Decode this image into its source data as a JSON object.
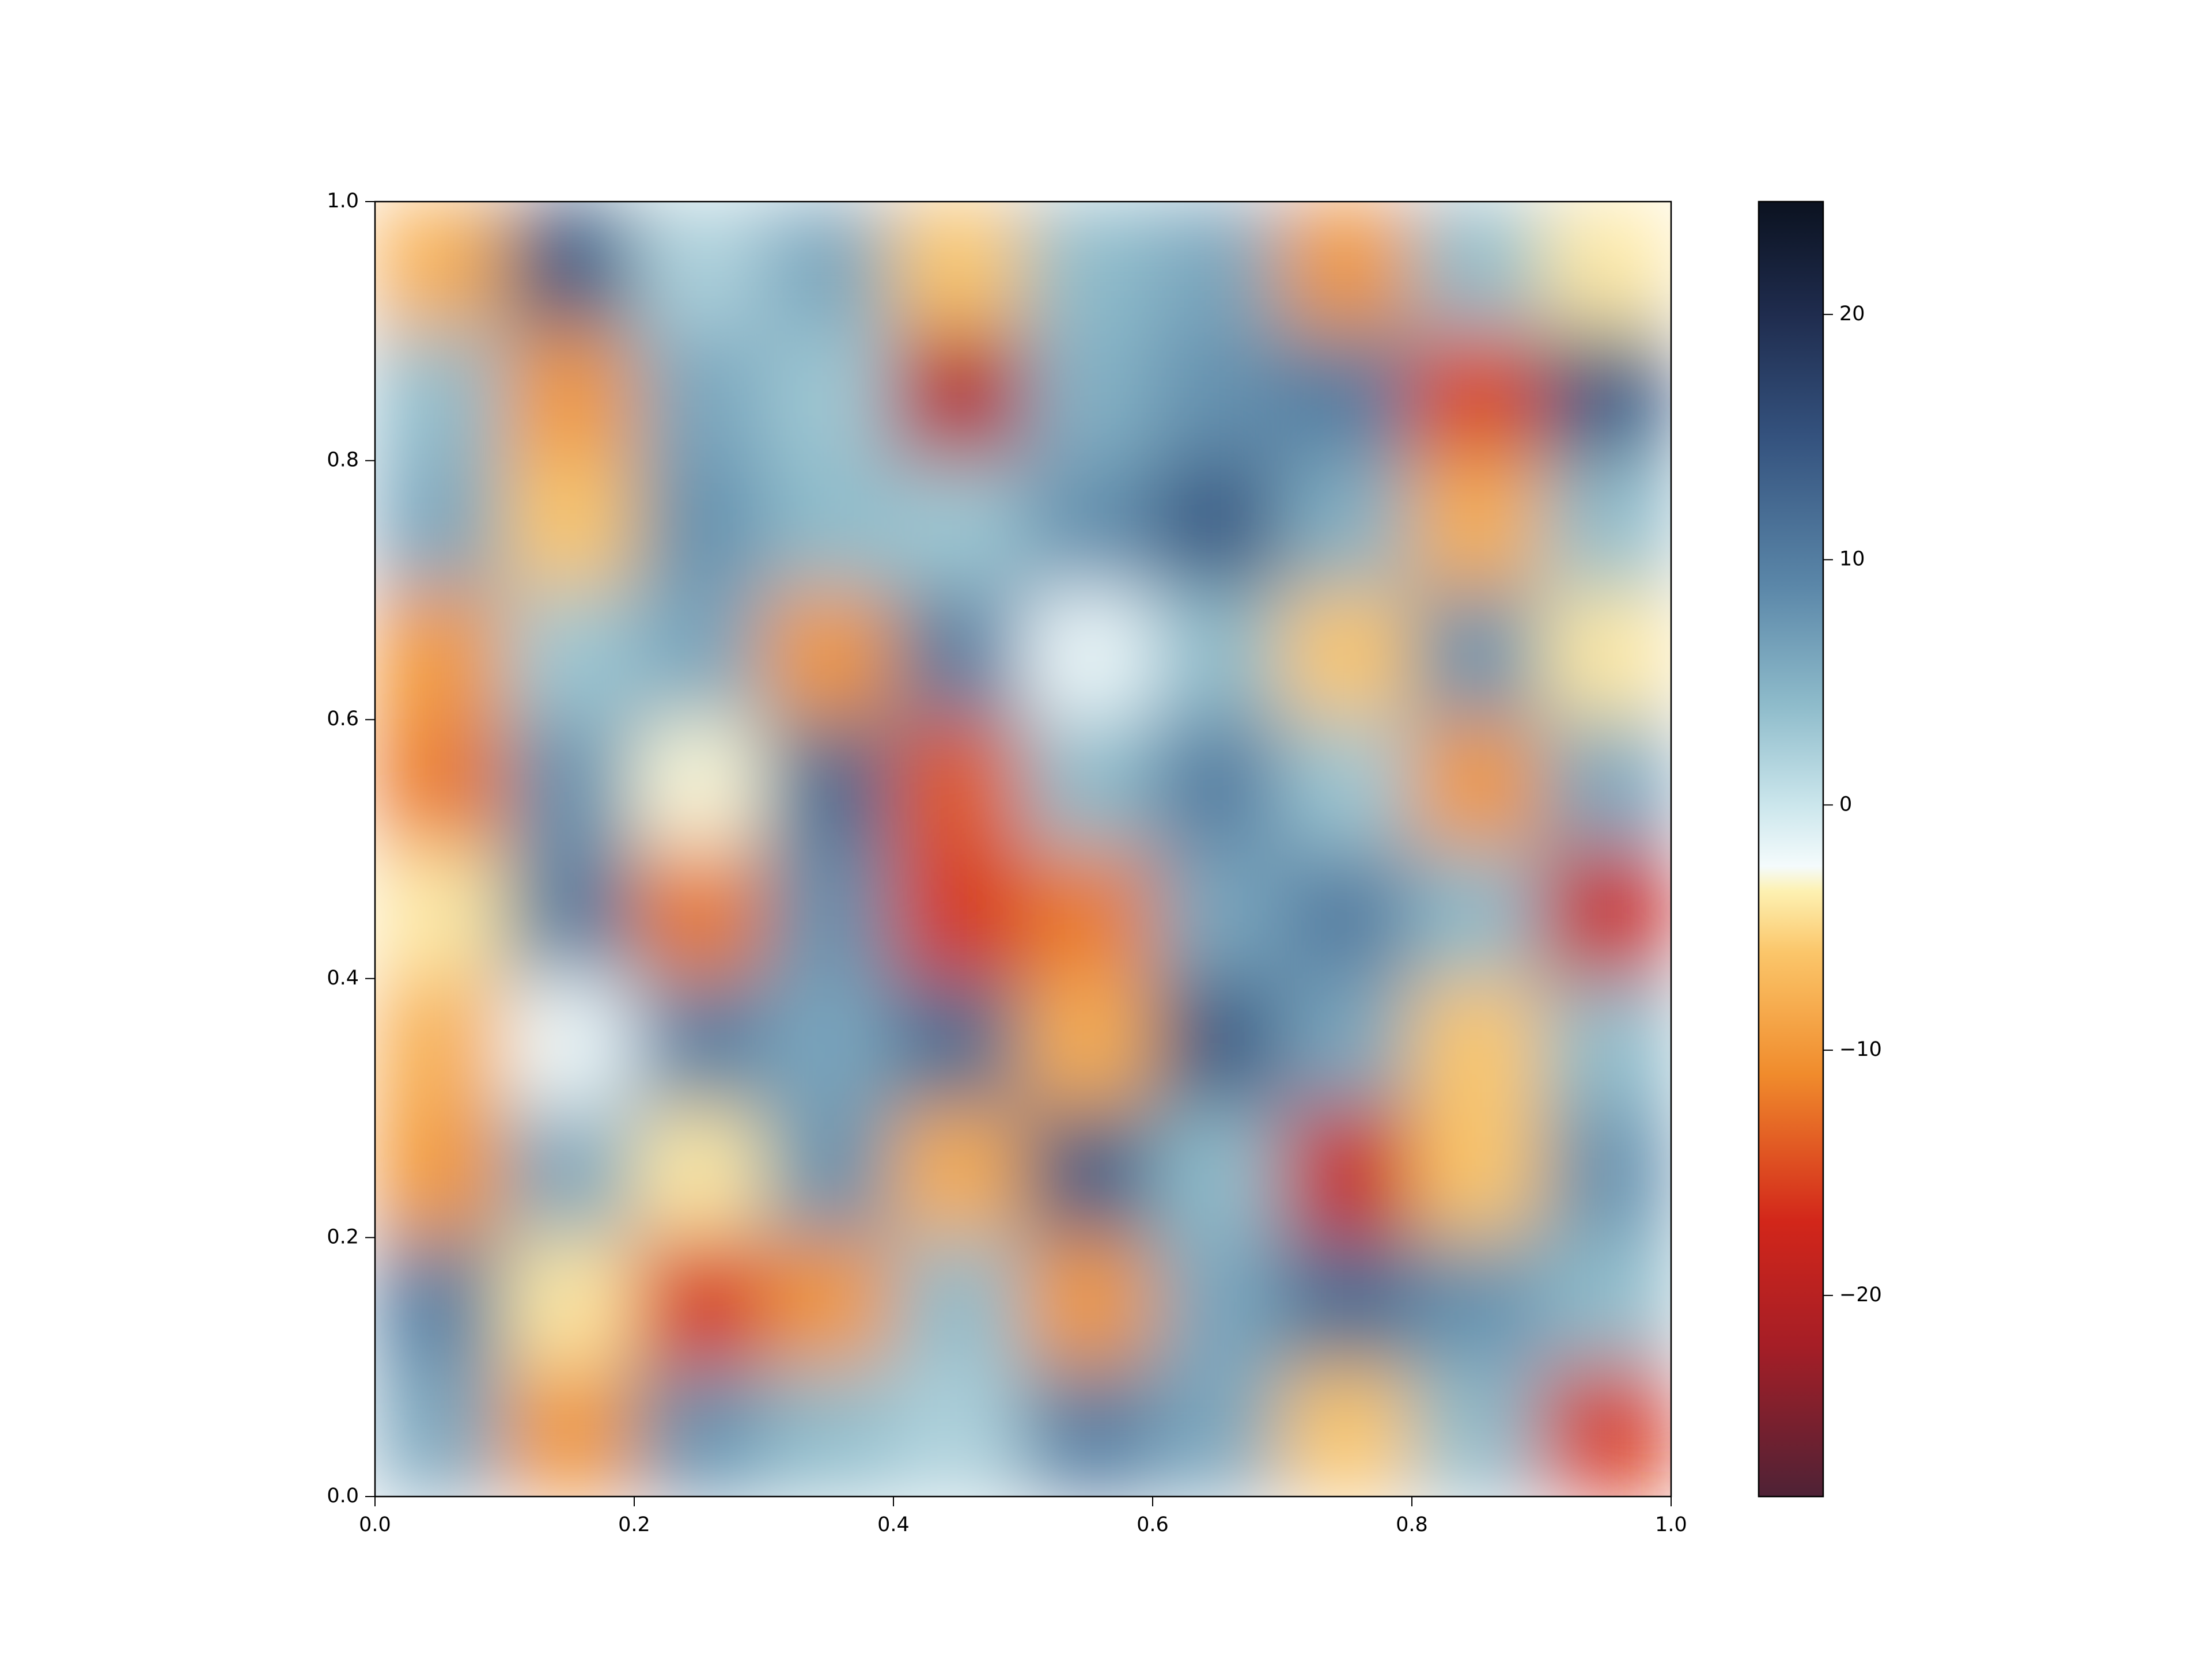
{
  "chart_data": {
    "type": "heatmap",
    "x": [
      0.05,
      0.15,
      0.25,
      0.35,
      0.45,
      0.55,
      0.65,
      0.75,
      0.85,
      0.95
    ],
    "y": [
      0.95,
      0.85,
      0.75,
      0.65,
      0.55,
      0.45,
      0.35,
      0.25,
      0.15,
      0.05
    ],
    "z": [
      [
        -8,
        14,
        2,
        6,
        -6,
        4,
        6,
        -10,
        4,
        -4
      ],
      [
        4,
        -10,
        6,
        3,
        -20,
        5,
        8,
        10,
        -15,
        14
      ],
      [
        6,
        -6,
        8,
        4,
        3,
        8,
        14,
        5,
        -8,
        4
      ],
      [
        -10,
        3,
        6,
        -10,
        10,
        -2,
        4,
        -6,
        8,
        -4
      ],
      [
        -12,
        8,
        -3,
        12,
        -14,
        4,
        10,
        3,
        -10,
        6
      ],
      [
        -4,
        10,
        -12,
        8,
        -16,
        -12,
        6,
        10,
        4,
        -18
      ],
      [
        -8,
        -2,
        10,
        6,
        12,
        -8,
        14,
        6,
        -6,
        4
      ],
      [
        -10,
        6,
        -4,
        8,
        -8,
        14,
        4,
        -18,
        -6,
        8
      ],
      [
        10,
        -4,
        -16,
        -10,
        4,
        -10,
        6,
        12,
        8,
        4
      ],
      [
        6,
        -10,
        8,
        4,
        2,
        10,
        6,
        -6,
        4,
        -16
      ]
    ],
    "xlim": [
      0,
      1
    ],
    "ylim": [
      0,
      1
    ],
    "xticks": [
      {
        "value": 0,
        "label": "0.0"
      },
      0.2,
      0.4,
      0.6,
      0.8,
      {
        "value": 1,
        "label": "1.0"
      }
    ],
    "yticks": [
      {
        "value": 0,
        "label": "0.0"
      },
      0.2,
      0.4,
      0.6,
      0.8,
      {
        "value": 1,
        "label": "1.0"
      }
    ],
    "colorbar": {
      "lim": [
        -28.2,
        24.6
      ],
      "ticks": [
        {
          "value": -20,
          "label": "−20"
        },
        {
          "value": -10,
          "label": "−10"
        },
        0,
        10,
        20
      ],
      "colorscale": [
        [
          -28.2,
          "#4e2236"
        ],
        [
          -22,
          "#a61e26"
        ],
        [
          -17,
          "#d2261a"
        ],
        [
          -11,
          "#f08b2c"
        ],
        [
          -6,
          "#fbc66a"
        ],
        [
          -3.5,
          "#fdf1b2"
        ],
        [
          -2.5,
          "#f4fbfc"
        ],
        [
          0,
          "#cbe6ec"
        ],
        [
          4,
          "#8fbccb"
        ],
        [
          9,
          "#5a86a8"
        ],
        [
          15,
          "#34527e"
        ],
        [
          20,
          "#1f2c4e"
        ],
        [
          24.6,
          "#0b1220"
        ]
      ]
    }
  }
}
